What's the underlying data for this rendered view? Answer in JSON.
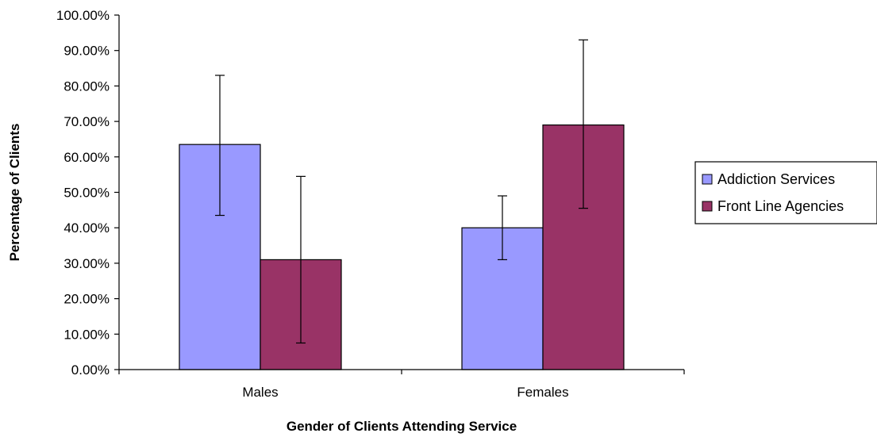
{
  "chart_data": {
    "type": "bar",
    "title": "",
    "xlabel": "Gender of Clients Attending Service",
    "ylabel": "Percentage of Clients",
    "categories": [
      "Males",
      "Females"
    ],
    "series": [
      {
        "name": "Addiction Services",
        "color": "#9999ff",
        "values": [
          63.5,
          40.0
        ],
        "error_low": [
          43.5,
          31.0
        ],
        "error_high": [
          83.0,
          49.0
        ]
      },
      {
        "name": "Front Line Agencies",
        "color": "#993366",
        "values": [
          31.0,
          69.0
        ],
        "error_low": [
          7.5,
          45.5
        ],
        "error_high": [
          54.5,
          93.0
        ]
      }
    ],
    "ylim": [
      0,
      100
    ],
    "yticks": [
      0,
      10,
      20,
      30,
      40,
      50,
      60,
      70,
      80,
      90,
      100
    ],
    "ytick_labels": [
      "0.00%",
      "10.00%",
      "20.00%",
      "30.00%",
      "40.00%",
      "50.00%",
      "60.00%",
      "70.00%",
      "80.00%",
      "90.00%",
      "100.00%"
    ],
    "grid": false,
    "legend_position": "right"
  }
}
